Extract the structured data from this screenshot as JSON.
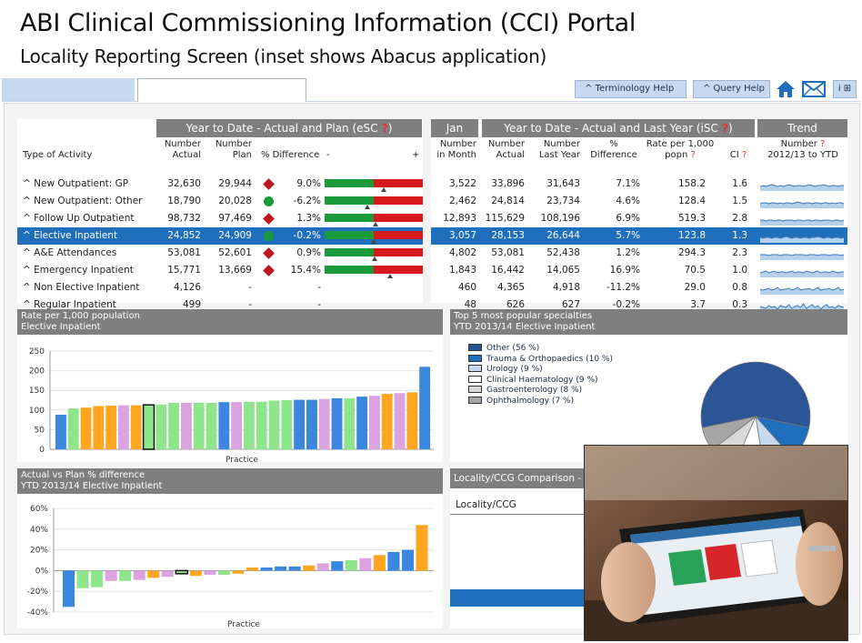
{
  "slide": {
    "title": "ABI Clinical Commissioning Information (CCI) Portal",
    "subtitle": "Locality Reporting Screen (inset shows Abacus application)"
  },
  "topbar": {
    "terminology_help": "^ Terminology Help",
    "query_help": "^ Query Help",
    "info": "i ⊞"
  },
  "left_table": {
    "group_header": "Year to Date - Actual and Plan (eSC",
    "q": " ?",
    "col_type": "Type of Activity",
    "col_actual_1": "Number",
    "col_actual_2": "Actual",
    "col_plan_1": "Number",
    "col_plan_2": "Plan",
    "col_diff": "% Difference",
    "minus": "-",
    "plus": "+",
    "rows": [
      {
        "type": "^ New Outpatient: GP",
        "actual": "32,630",
        "plan": "29,944",
        "status": "red",
        "diff": "9.0%",
        "diff_val": 9.0
      },
      {
        "type": "^ New Outpatient: Other",
        "actual": "18,790",
        "plan": "20,028",
        "status": "green",
        "diff": "-6.2%",
        "diff_val": -6.2
      },
      {
        "type": "^ Follow Up Outpatient",
        "actual": "98,732",
        "plan": "97,469",
        "status": "red",
        "diff": "1.3%",
        "diff_val": 1.3
      },
      {
        "type": "^ Elective Inpatient",
        "actual": "24,852",
        "plan": "24,909",
        "status": "green",
        "diff": "-0.2%",
        "diff_val": -0.2
      },
      {
        "type": "^ A&E Attendances",
        "actual": "53,081",
        "plan": "52,601",
        "status": "red",
        "diff": "0.9%",
        "diff_val": 0.9
      },
      {
        "type": "^ Emergency Inpatient",
        "actual": "15,771",
        "plan": "13,669",
        "status": "red",
        "diff": "15.4%",
        "diff_val": 15.4
      },
      {
        "type": "^ Non Elective Inpatient",
        "actual": "4,126",
        "plan": "-",
        "status": "",
        "diff": "-",
        "diff_val": null
      },
      {
        "type": "^ Regular Inpatient",
        "actual": "499",
        "plan": "-",
        "status": "",
        "diff": "-",
        "diff_val": null
      }
    ]
  },
  "right_table": {
    "jan_header": "Jan",
    "group_header": "Year to Date - Actual and Last Year (iSC",
    "q": " ?",
    "trend_header": "Trend",
    "col_month_1": "Number",
    "col_month_2": "in Month",
    "col_actual_1": "Number",
    "col_actual_2": "Actual",
    "col_ly_1": "Number",
    "col_ly_2": "Last Year",
    "col_pct_1": "%",
    "col_pct_2": "Difference",
    "col_rate_1": "Rate per 1,000",
    "col_rate_2": "popn",
    "col_ci": "CI",
    "col_trend_1": "Number",
    "col_trend_2": "2012/13 to YTD",
    "rows": [
      {
        "month": "3,522",
        "actual": "33,896",
        "ly": "31,643",
        "pct": "7.1%",
        "rate": "158.2",
        "ci": "1.6"
      },
      {
        "month": "2,462",
        "actual": "24,814",
        "ly": "23,734",
        "pct": "4.6%",
        "rate": "128.4",
        "ci": "1.5"
      },
      {
        "month": "12,893",
        "actual": "115,629",
        "ly": "108,196",
        "pct": "6.9%",
        "rate": "519.3",
        "ci": "2.8"
      },
      {
        "month": "3,057",
        "actual": "28,153",
        "ly": "26,644",
        "pct": "5.7%",
        "rate": "123.8",
        "ci": "1.3"
      },
      {
        "month": "4,802",
        "actual": "53,081",
        "ly": "52,438",
        "pct": "1.2%",
        "rate": "294.3",
        "ci": "2.3"
      },
      {
        "month": "1,843",
        "actual": "16,442",
        "ly": "14,065",
        "pct": "16.9%",
        "rate": "70.5",
        "ci": "1.0"
      },
      {
        "month": "460",
        "actual": "4,365",
        "ly": "4,918",
        "pct": "-11.2%",
        "rate": "29.0",
        "ci": "0.8"
      },
      {
        "month": "48",
        "actual": "626",
        "ly": "627",
        "pct": "-0.2%",
        "rate": "3.7",
        "ci": "0.3"
      }
    ]
  },
  "rate_chart": {
    "title1": "Rate per 1,000 population",
    "title2": "Elective Inpatient"
  },
  "diff_chart": {
    "title1": "Actual vs Plan % difference",
    "title2": "YTD 2013/14 Elective Inpatient"
  },
  "specialties": {
    "title1": "Top 5 most popular specialties",
    "title2": "YTD 2013/14 Elective Inpatient",
    "legend": [
      {
        "label": "Other (56 %)",
        "color": "#2a5597"
      },
      {
        "label": "Trauma & Orthopaedics (10 %)",
        "color": "#1f6fbd"
      },
      {
        "label": "Urology (9 %)",
        "color": "#c7d9ef"
      },
      {
        "label": "Clinical Haematology (9 %)",
        "color": "#ffffff"
      },
      {
        "label": "Gastroenterology (8 %)",
        "color": "#d9d9d9"
      },
      {
        "label": "Ophthalmology (7 %)",
        "color": "#a6a6a6"
      }
    ]
  },
  "comparison": {
    "title": "Locality/CCG Comparison - E",
    "col": "Locality/CCG",
    "col2": "P"
  },
  "chart_data": [
    {
      "type": "bar",
      "title": "Rate per 1,000 population",
      "subtitle": "Elective Inpatient",
      "xlabel": "Practice",
      "ylim": [
        0,
        250
      ],
      "yticks": [
        "0",
        "50",
        "100",
        "150",
        "200",
        "250"
      ],
      "values": [
        88,
        104,
        106,
        110,
        111,
        112,
        112,
        113,
        114,
        118,
        118,
        118,
        118,
        120,
        120,
        121,
        121,
        124,
        125,
        126,
        126,
        128,
        130,
        130,
        134,
        136,
        141,
        143,
        145,
        210
      ],
      "colors": [
        "blue",
        "green",
        "orange",
        "orange",
        "orange",
        "pink",
        "orange",
        "highlight",
        "green",
        "green",
        "pink",
        "green",
        "green",
        "blue",
        "pink",
        "green",
        "green",
        "green",
        "green",
        "blue",
        "blue",
        "pink",
        "blue",
        "green",
        "blue",
        "pink",
        "orange",
        "pink",
        "orange",
        "blue"
      ]
    },
    {
      "type": "bar",
      "title": "Actual vs Plan % difference",
      "subtitle": "YTD 2013/14 Elective Inpatient",
      "xlabel": "Practice",
      "ylim": [
        -40,
        60
      ],
      "yticks": [
        "-40%",
        "-20%",
        "0%",
        "20%",
        "40%",
        "60%"
      ],
      "values": [
        -35,
        -17,
        -16,
        -10,
        -10,
        -9,
        -7,
        -6,
        -3,
        -5,
        -4,
        -4,
        -3,
        3,
        3,
        4,
        4,
        5,
        7,
        9,
        10,
        12,
        15,
        18,
        20,
        44
      ],
      "colors": [
        "blue",
        "green",
        "green",
        "pink",
        "green",
        "pink",
        "orange",
        "pink",
        "highlight",
        "orange",
        "pink",
        "green",
        "orange",
        "orange",
        "blue",
        "blue",
        "blue",
        "orange",
        "pink",
        "blue",
        "green",
        "pink",
        "orange",
        "blue",
        "blue",
        "orange"
      ]
    },
    {
      "type": "pie",
      "title": "Top 5 most popular specialties",
      "subtitle": "YTD 2013/14 Elective Inpatient",
      "categories": [
        "Other",
        "Trauma & Orthopaedics",
        "Urology",
        "Clinical Haematology",
        "Gastroenterology",
        "Ophthalmology"
      ],
      "values": [
        56,
        10,
        9,
        9,
        8,
        7
      ]
    }
  ]
}
